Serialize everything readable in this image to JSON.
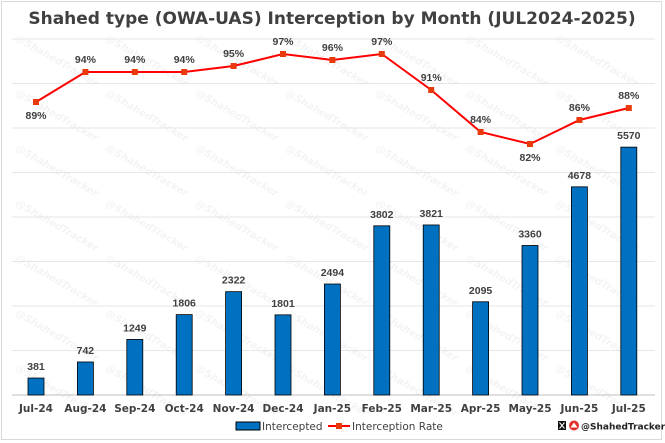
{
  "chart_data": {
    "type": "bar+line",
    "title": "Shahed type (OWA-UAS) Interception by Month (JUL2024-2025)",
    "categories": [
      "Jul-24",
      "Aug-24",
      "Sep-24",
      "Oct-24",
      "Nov-24",
      "Dec-24",
      "Jan-25",
      "Feb-25",
      "Mar-25",
      "Apr-25",
      "May-25",
      "Jun-25",
      "Jul-25"
    ],
    "series": [
      {
        "name": "Intercepted",
        "type": "bar",
        "color": "#0070C0",
        "values": [
          381,
          742,
          1249,
          1806,
          2322,
          1801,
          2494,
          3802,
          3821,
          2095,
          3360,
          4678,
          5570
        ],
        "labels": [
          "381",
          "742",
          "1249",
          "1806",
          "2322",
          "1801",
          "2494",
          "3802",
          "3821",
          "2095",
          "3360",
          "4678",
          "5570"
        ]
      },
      {
        "name": "Interception Rate",
        "type": "line",
        "color": "#FF0000",
        "marker_color": "#E83A0C",
        "values": [
          89,
          94,
          94,
          94,
          95,
          97,
          96,
          97,
          91,
          84,
          82,
          86,
          88
        ],
        "labels": [
          "89%",
          "94%",
          "94%",
          "94%",
          "95%",
          "97%",
          "96%",
          "97%",
          "91%",
          "84%",
          "82%",
          "86%",
          "88%"
        ]
      }
    ],
    "ylim": [
      0,
      8000
    ],
    "grid": true,
    "legend": "bottom"
  },
  "watermark": "@ShahedTracker",
  "credit": "@ShahedTracker"
}
